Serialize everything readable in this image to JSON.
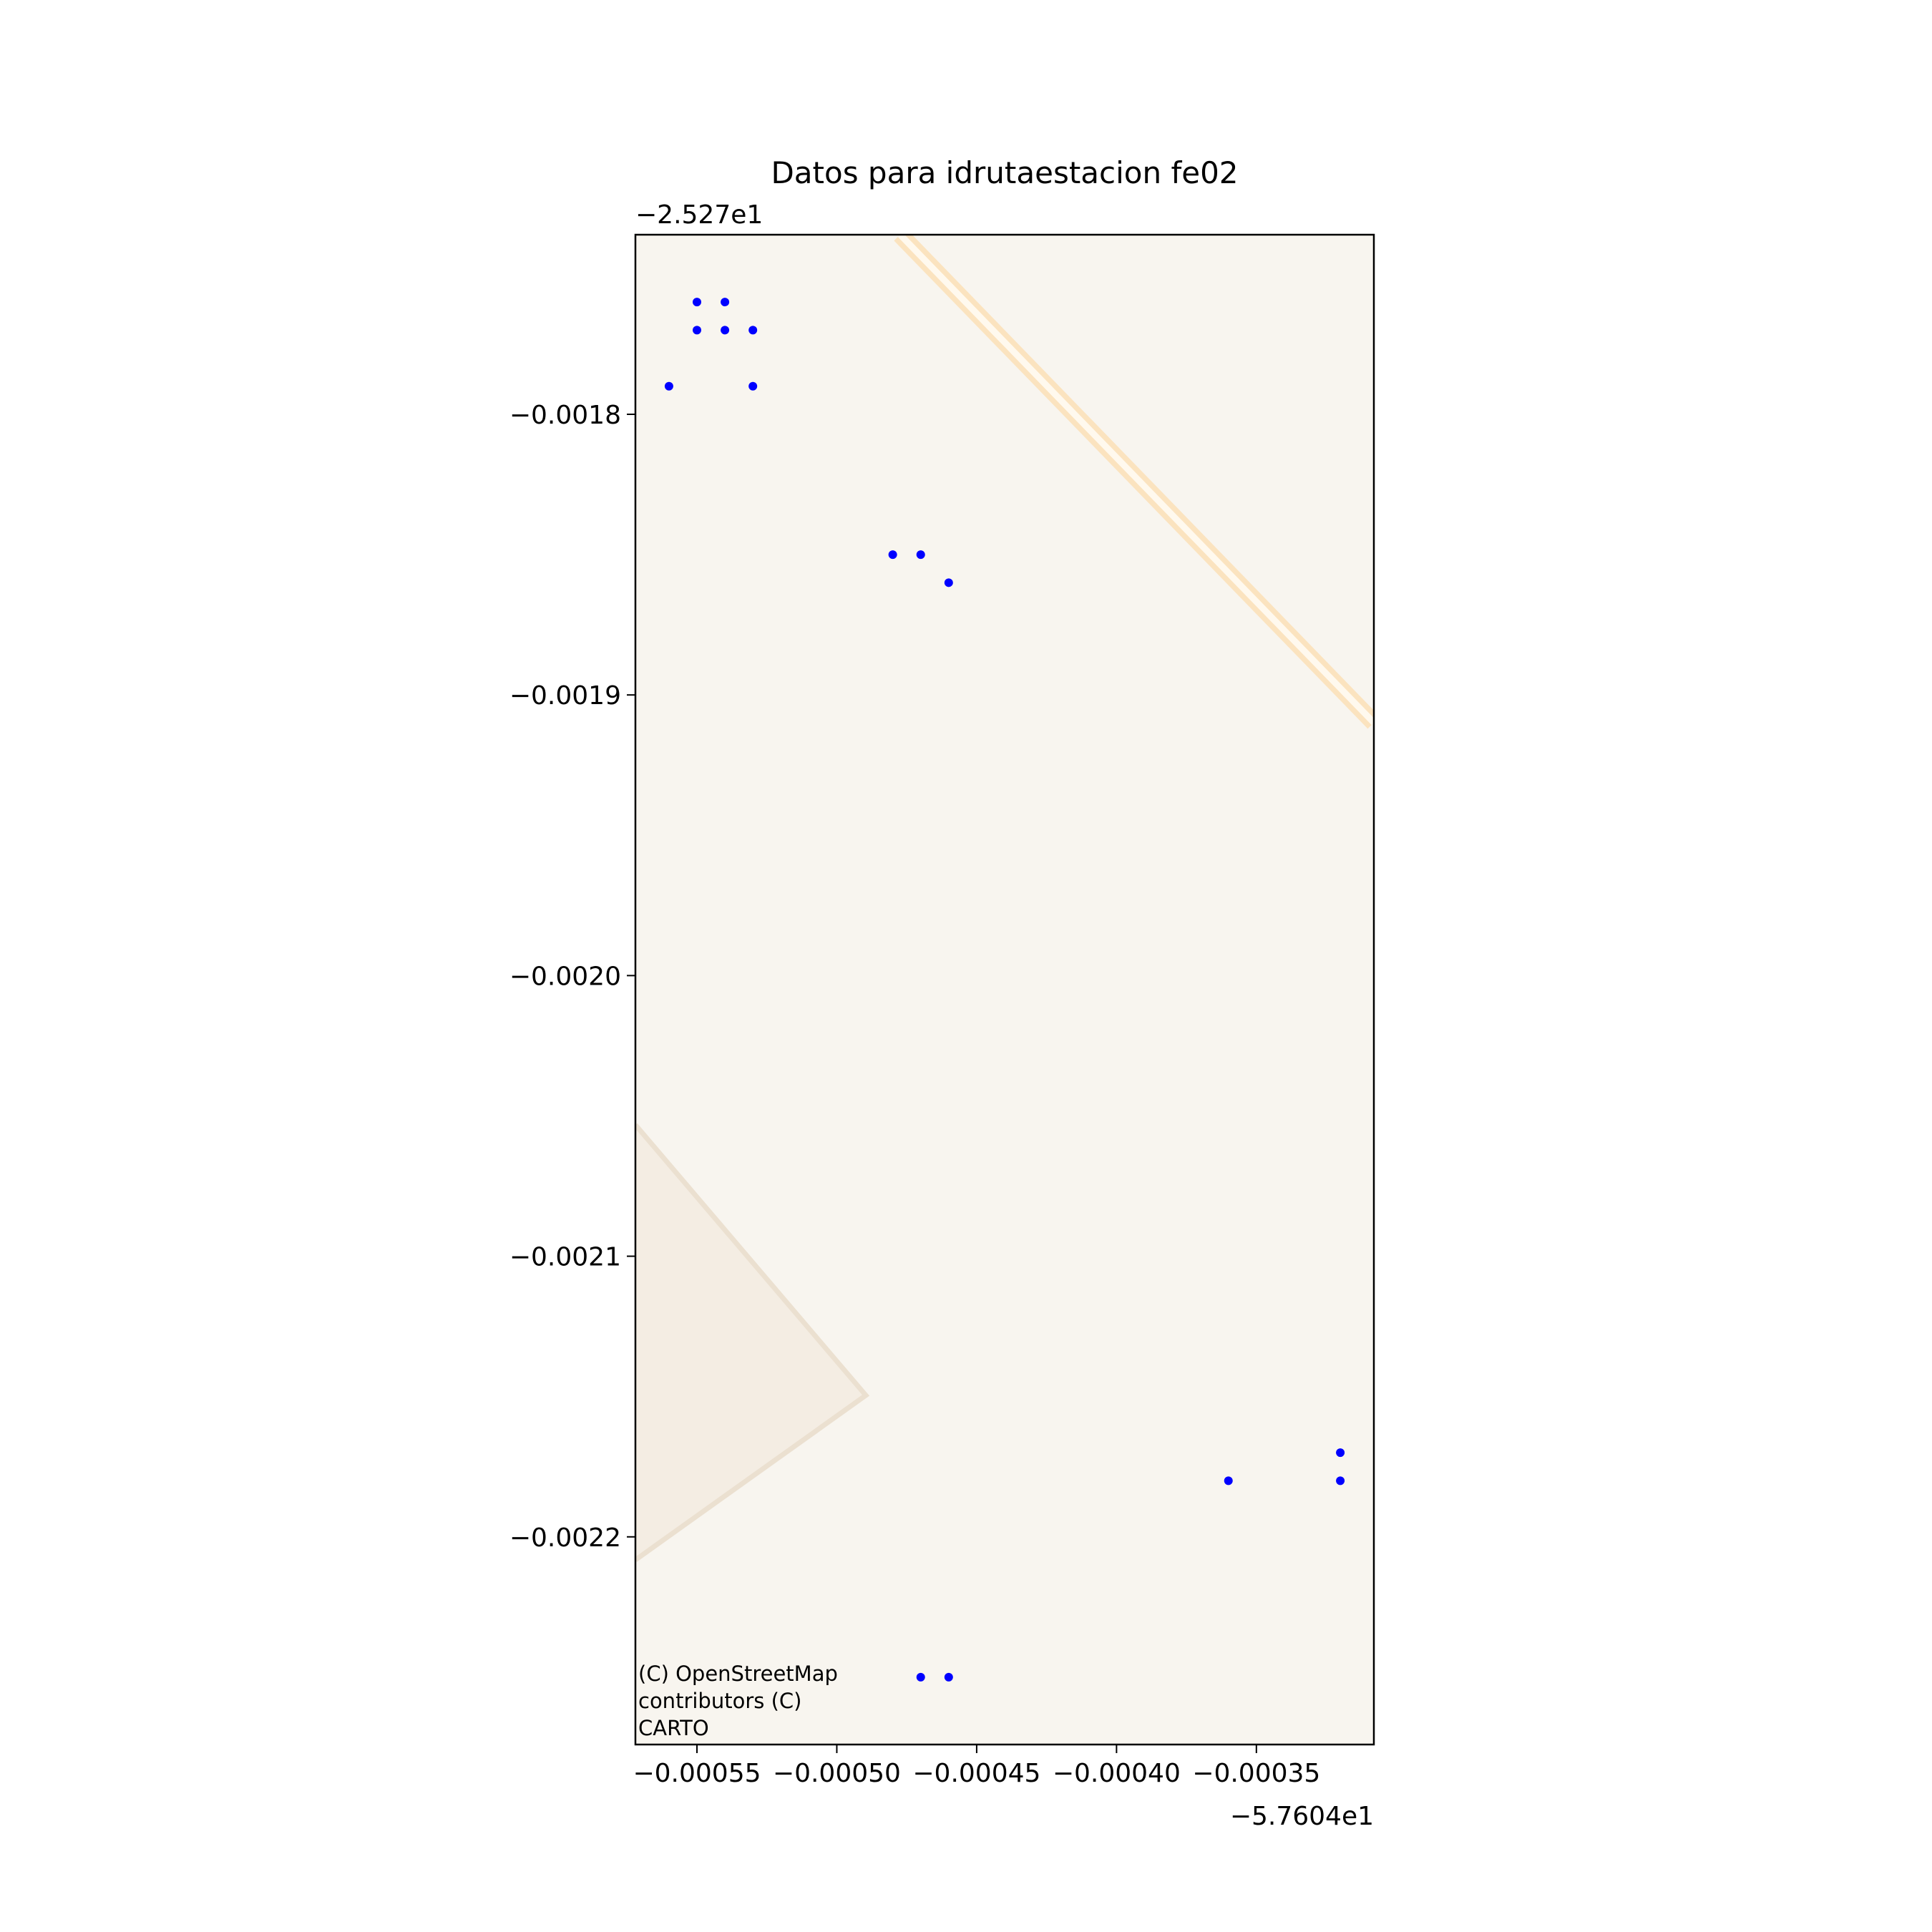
{
  "chart_data": {
    "type": "scatter",
    "title": "Datos para idrutaestacion fe02",
    "xlabel": "",
    "ylabel": "",
    "x_offset_label": "−5.7604e1",
    "y_offset_label": "−2.527e1",
    "x_offset": -57.604,
    "y_offset": -25.27,
    "xlim": [
      -0.000572,
      -0.000308
    ],
    "ylim": [
      -0.002274,
      -0.001736
    ],
    "x_ticks": [
      -0.00055,
      -0.0005,
      -0.00045,
      -0.0004,
      -0.00035
    ],
    "x_tick_labels": [
      "−0.00055",
      "−0.00050",
      "−0.00045",
      "−0.00040",
      "−0.00035"
    ],
    "y_ticks": [
      -0.0018,
      -0.0019,
      -0.002,
      -0.0021,
      -0.0022
    ],
    "y_tick_labels": [
      "−0.0018",
      "−0.0019",
      "−0.0020",
      "−0.0021",
      "−0.0022"
    ],
    "grid": false,
    "marker_color": "#0000ff",
    "basemap_color": "#f8f5ef",
    "points": [
      {
        "x": -0.00055,
        "y": -0.00176
      },
      {
        "x": -0.00054,
        "y": -0.00176
      },
      {
        "x": -0.00055,
        "y": -0.00177
      },
      {
        "x": -0.00054,
        "y": -0.00177
      },
      {
        "x": -0.00053,
        "y": -0.00177
      },
      {
        "x": -0.00056,
        "y": -0.00179
      },
      {
        "x": -0.00053,
        "y": -0.00179
      },
      {
        "x": -0.00048,
        "y": -0.00185
      },
      {
        "x": -0.00047,
        "y": -0.00185
      },
      {
        "x": -0.00046,
        "y": -0.00186
      },
      {
        "x": -0.00036,
        "y": -0.00218
      },
      {
        "x": -0.00032,
        "y": -0.00217
      },
      {
        "x": -0.00032,
        "y": -0.00218
      },
      {
        "x": -0.00047,
        "y": -0.00225
      },
      {
        "x": -0.00046,
        "y": -0.00225
      }
    ]
  },
  "attribution": [
    "(C) OpenStreetMap",
    "contributors (C)",
    "CARTO"
  ]
}
